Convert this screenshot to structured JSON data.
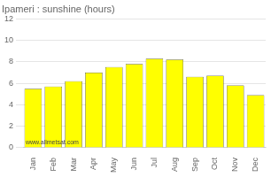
{
  "chart_data": {
    "type": "bar",
    "title": "Ipameri : sunshine (hours)",
    "categories": [
      "Jan",
      "Feb",
      "Mar",
      "Apr",
      "May",
      "Jun",
      "Jul",
      "Aug",
      "Sep",
      "Oct",
      "Nov",
      "Dec"
    ],
    "values": [
      5.5,
      5.7,
      6.2,
      7.0,
      7.5,
      7.8,
      8.3,
      8.2,
      6.6,
      6.7,
      5.8,
      4.9
    ],
    "color": "#FFFF00",
    "ylim": [
      0,
      12
    ],
    "yticks": [
      0,
      2,
      4,
      6,
      8,
      10,
      12
    ],
    "grid": true,
    "annotation": "www.allmetsat.com"
  }
}
